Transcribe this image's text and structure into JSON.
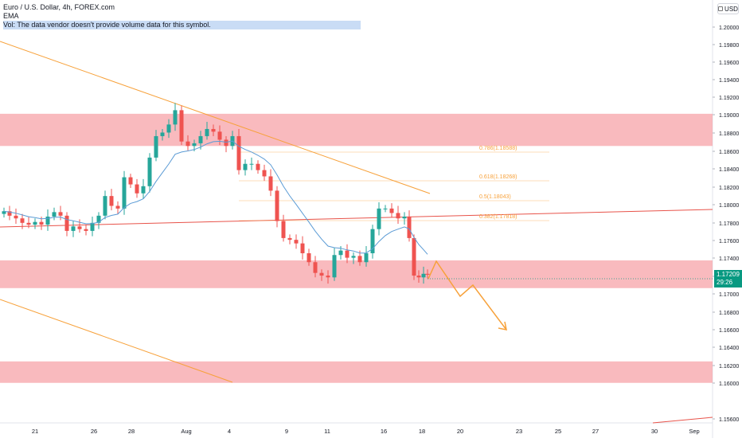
{
  "legend": {
    "symbol_line": "Euro / U.S. Dollar, 4h, FOREX.com",
    "ema_label": "EMA",
    "vol_line": "Vol: The data vendor doesn't provide volume data for this symbol."
  },
  "currency_badge": "USD",
  "price_badge": {
    "price": "1.17209",
    "countdown": "29:26"
  },
  "colors": {
    "up": "#26a69a",
    "down": "#ef5350",
    "zone": "#f7a3a8",
    "trend_orange": "#f7a13a",
    "ema": "#5b9bd5",
    "fib": "#f7a13a",
    "red_line": "#e8534a",
    "badge": "#089981"
  },
  "chart_data": {
    "type": "candlestick",
    "yaxis_ticks": [
      "1.20000",
      "1.19800",
      "1.19600",
      "1.19400",
      "1.19200",
      "1.19000",
      "1.18800",
      "1.18600",
      "1.18400",
      "1.18200",
      "1.18000",
      "1.17800",
      "1.17600",
      "1.17400",
      "1.17200",
      "1.17000",
      "1.16800",
      "1.16600",
      "1.16400",
      "1.16200",
      "1.16000",
      "1.15600"
    ],
    "xaxis_ticks": [
      "21",
      "26",
      "28",
      "Aug",
      "4",
      "9",
      "11",
      "16",
      "18",
      "20",
      "23",
      "25",
      "27",
      "30",
      "Sep"
    ],
    "zones": [
      {
        "from": 1.1865,
        "to": 1.1901
      },
      {
        "from": 1.1706,
        "to": 1.1737
      },
      {
        "from": 1.16,
        "to": 1.1624
      }
    ],
    "fibonacci": [
      {
        "label": "0.786(1.18588)"
      },
      {
        "label": "0.618(1.18268)"
      },
      {
        "label": "0.5(1.18043)"
      },
      {
        "label": "0.382(1.17818)"
      }
    ]
  }
}
